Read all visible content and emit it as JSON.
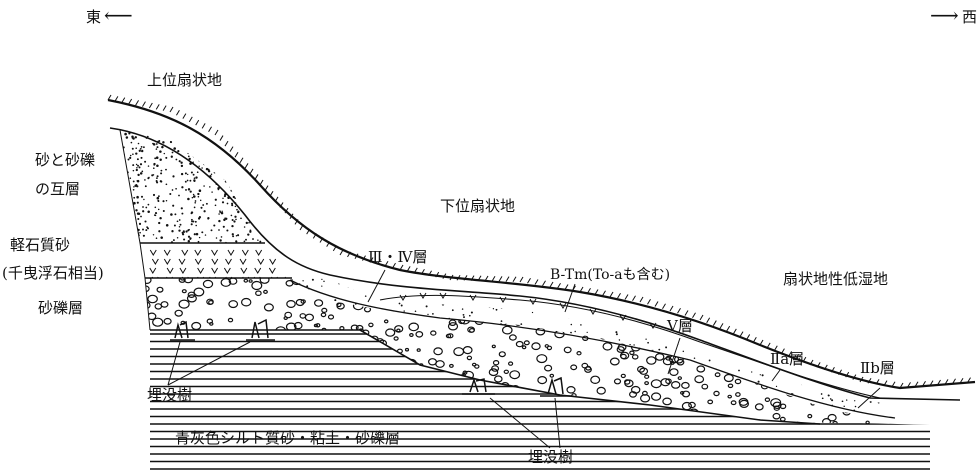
{
  "orientation": {
    "east_label": "東",
    "west_label": "西",
    "arrow_left": "⟵",
    "arrow_right": "⟶"
  },
  "labels": {
    "upper_fan": "上位扇状地",
    "lower_fan": "下位扇状地",
    "sand_gravel_alternation_line1": "砂と砂礫",
    "sand_gravel_alternation_line2": "の互層",
    "pumice_sand_line1": "軽石質砂",
    "pumice_sand_line2": "(千曳浮石相当)",
    "gravel_layer": "砂礫層",
    "layer_3_4": "Ⅲ・Ⅳ層",
    "b_tm": "B-Tm(To-aも含む)",
    "fan_lowland": "扇状地性低湿地",
    "layer_5": "Ⅴ層",
    "layer_2a": "Ⅱa層",
    "layer_2b": "Ⅱb層",
    "buried_trees_left": "埋没樹",
    "buried_trees_center": "埋没樹",
    "basement": "青灰色シルト質砂・粘土・砂礫層"
  },
  "colors": {
    "ink": "#111111",
    "background": "#ffffff"
  }
}
